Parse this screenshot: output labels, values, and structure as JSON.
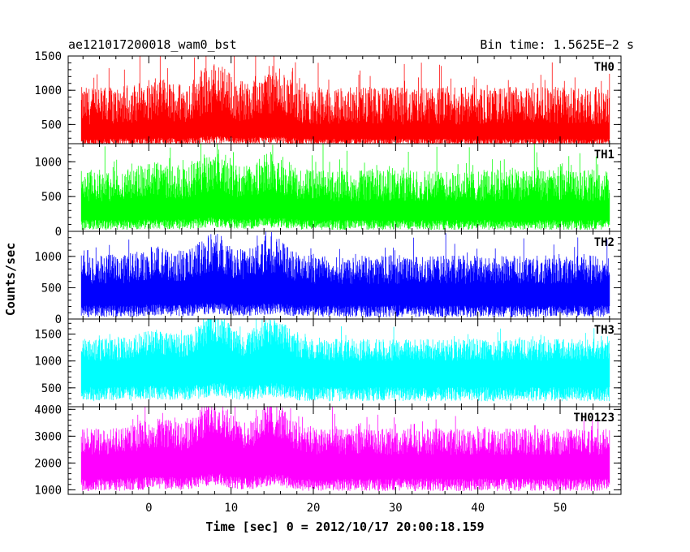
{
  "header": {
    "title": "ae121017200018_wam0_bst",
    "bin_time": "Bin time: 1.5625E−2 s"
  },
  "chart_data": {
    "type": "line",
    "xlabel": "Time [sec] 0 = 2012/10/17 20:00:18.159",
    "ylabel": "Counts/sec",
    "xlim": [
      -9.8,
      57.4
    ],
    "data_xrange": [
      -8.2,
      56.0
    ],
    "x_ticks": [
      0,
      10,
      20,
      30,
      40,
      50
    ],
    "x_minor_step": 2,
    "panels": [
      {
        "label": "TH0",
        "color": "#ff0000",
        "ylim": [
          220,
          1500
        ],
        "ticks": [
          500,
          1000,
          1500
        ],
        "minor_step": 100,
        "baseline": 500,
        "low_floor": 180,
        "peak": 1500
      },
      {
        "label": "TH1",
        "color": "#00ff00",
        "ylim": [
          0,
          1260
        ],
        "ticks": [
          0,
          500,
          1000
        ],
        "minor_step": 100,
        "baseline": 430,
        "low_floor": 20,
        "peak": 1260
      },
      {
        "label": "TH2",
        "color": "#0000ff",
        "ylim": [
          0,
          1400
        ],
        "ticks": [
          0,
          500,
          1000
        ],
        "minor_step": 100,
        "baseline": 560,
        "low_floor": 30,
        "peak": 1400
      },
      {
        "label": "TH3",
        "color": "#00ffff",
        "ylim": [
          150,
          1780
        ],
        "ticks": [
          500,
          1000,
          1500
        ],
        "minor_step": 100,
        "baseline": 1000,
        "low_floor": 250,
        "peak": 1750
      },
      {
        "label": "TH0123",
        "color": "#ff00ff",
        "ylim": [
          830,
          4100
        ],
        "ticks": [
          1000,
          2000,
          3000,
          4000
        ],
        "minor_step": 200,
        "baseline": 2300,
        "low_floor": 950,
        "peak": 4100
      }
    ]
  }
}
